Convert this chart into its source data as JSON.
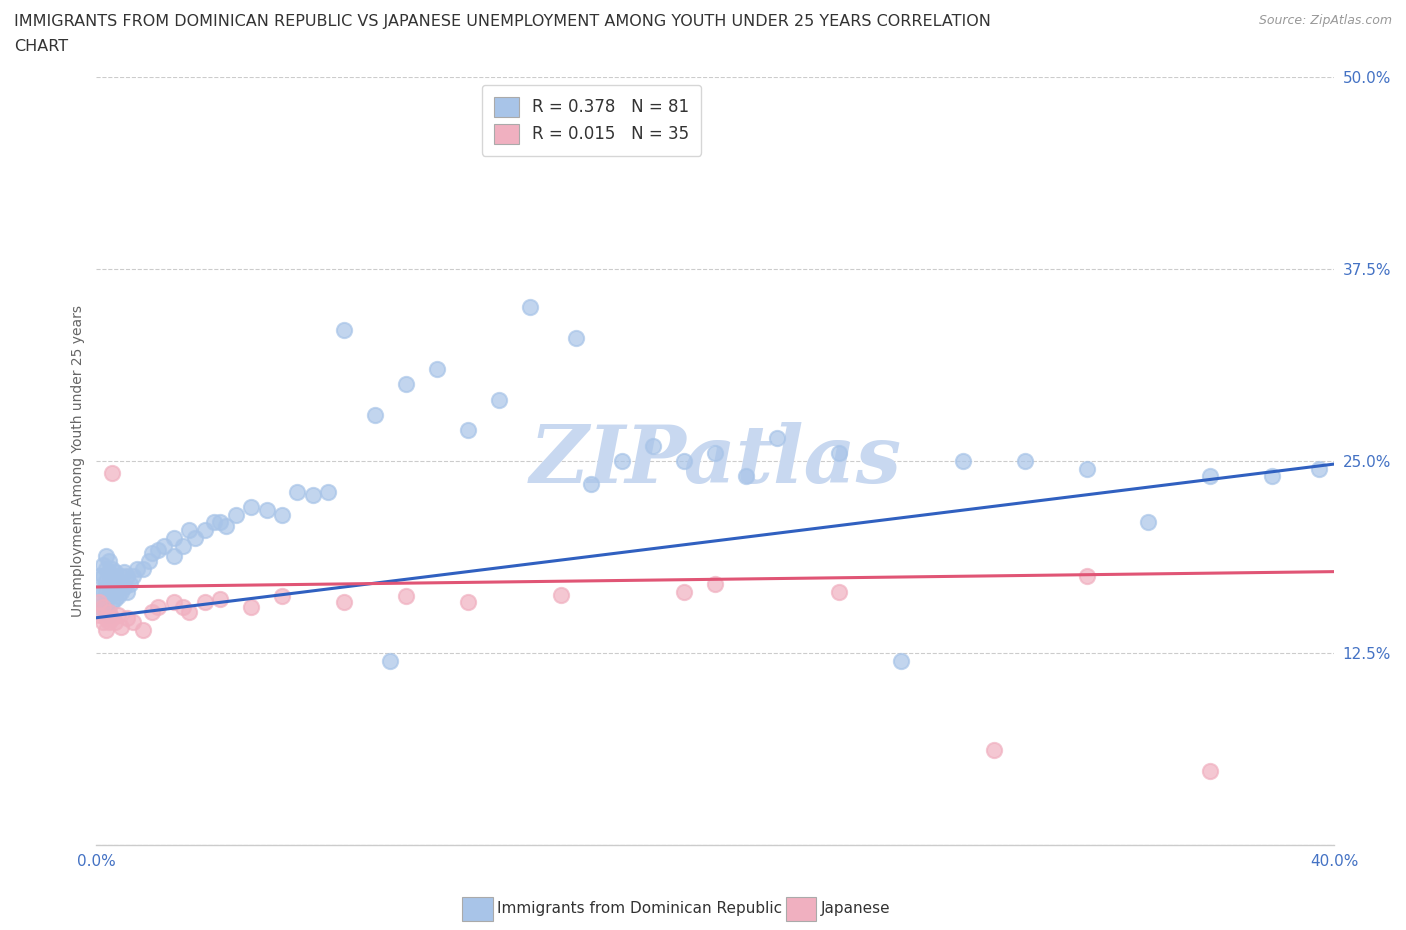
{
  "title_line1": "IMMIGRANTS FROM DOMINICAN REPUBLIC VS JAPANESE UNEMPLOYMENT AMONG YOUTH UNDER 25 YEARS CORRELATION",
  "title_line2": "CHART",
  "source_text": "Source: ZipAtlas.com",
  "ylabel": "Unemployment Among Youth under 25 years",
  "xlim": [
    0.0,
    0.4
  ],
  "ylim": [
    0.0,
    0.5
  ],
  "xticks": [
    0.0,
    0.05,
    0.1,
    0.15,
    0.2,
    0.25,
    0.3,
    0.35,
    0.4
  ],
  "xticklabels": [
    "0.0%",
    "",
    "",
    "",
    "",
    "",
    "",
    "",
    "40.0%"
  ],
  "yticks": [
    0.0,
    0.125,
    0.25,
    0.375,
    0.5
  ],
  "yticklabels": [
    "",
    "12.5%",
    "25.0%",
    "37.5%",
    "50.0%"
  ],
  "blue_color": "#a8c4e8",
  "pink_color": "#f0b0c0",
  "blue_line_color": "#3060c0",
  "pink_line_color": "#e05575",
  "watermark_text": "ZIPatlas",
  "watermark_color": "#c8d8f0",
  "legend_label_blue": "R = 0.378   N = 81",
  "legend_label_pink": "R = 0.015   N = 35",
  "blue_scatter_x": [
    0.001,
    0.001,
    0.001,
    0.002,
    0.002,
    0.002,
    0.002,
    0.003,
    0.003,
    0.003,
    0.003,
    0.003,
    0.004,
    0.004,
    0.004,
    0.004,
    0.004,
    0.005,
    0.005,
    0.005,
    0.005,
    0.006,
    0.006,
    0.006,
    0.007,
    0.007,
    0.008,
    0.008,
    0.009,
    0.009,
    0.01,
    0.01,
    0.011,
    0.012,
    0.013,
    0.015,
    0.017,
    0.018,
    0.02,
    0.022,
    0.025,
    0.025,
    0.028,
    0.03,
    0.032,
    0.035,
    0.038,
    0.04,
    0.042,
    0.045,
    0.05,
    0.055,
    0.06,
    0.065,
    0.07,
    0.075,
    0.08,
    0.09,
    0.095,
    0.1,
    0.11,
    0.12,
    0.13,
    0.14,
    0.155,
    0.16,
    0.17,
    0.18,
    0.19,
    0.2,
    0.21,
    0.22,
    0.24,
    0.26,
    0.28,
    0.3,
    0.32,
    0.34,
    0.36,
    0.38,
    0.395
  ],
  "blue_scatter_y": [
    0.155,
    0.165,
    0.175,
    0.155,
    0.165,
    0.175,
    0.182,
    0.155,
    0.165,
    0.172,
    0.18,
    0.188,
    0.15,
    0.162,
    0.17,
    0.178,
    0.185,
    0.158,
    0.165,
    0.172,
    0.18,
    0.16,
    0.17,
    0.178,
    0.162,
    0.172,
    0.165,
    0.175,
    0.168,
    0.178,
    0.165,
    0.175,
    0.17,
    0.175,
    0.18,
    0.18,
    0.185,
    0.19,
    0.192,
    0.195,
    0.188,
    0.2,
    0.195,
    0.205,
    0.2,
    0.205,
    0.21,
    0.21,
    0.208,
    0.215,
    0.22,
    0.218,
    0.215,
    0.23,
    0.228,
    0.23,
    0.335,
    0.28,
    0.12,
    0.3,
    0.31,
    0.27,
    0.29,
    0.35,
    0.33,
    0.235,
    0.25,
    0.26,
    0.25,
    0.255,
    0.24,
    0.265,
    0.255,
    0.12,
    0.25,
    0.25,
    0.245,
    0.21,
    0.24,
    0.24,
    0.245
  ],
  "pink_scatter_x": [
    0.001,
    0.001,
    0.002,
    0.002,
    0.003,
    0.003,
    0.004,
    0.004,
    0.005,
    0.005,
    0.006,
    0.007,
    0.008,
    0.01,
    0.012,
    0.015,
    0.018,
    0.02,
    0.025,
    0.028,
    0.03,
    0.035,
    0.04,
    0.05,
    0.06,
    0.08,
    0.1,
    0.12,
    0.15,
    0.19,
    0.2,
    0.24,
    0.29,
    0.32,
    0.36
  ],
  "pink_scatter_y": [
    0.15,
    0.158,
    0.145,
    0.155,
    0.14,
    0.148,
    0.145,
    0.152,
    0.148,
    0.242,
    0.145,
    0.15,
    0.142,
    0.148,
    0.145,
    0.14,
    0.152,
    0.155,
    0.158,
    0.155,
    0.152,
    0.158,
    0.16,
    0.155,
    0.162,
    0.158,
    0.162,
    0.158,
    0.163,
    0.165,
    0.17,
    0.165,
    0.062,
    0.175,
    0.048
  ]
}
